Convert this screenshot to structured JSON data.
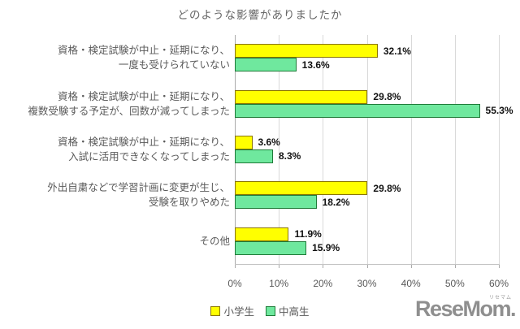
{
  "chart_data": {
    "type": "bar",
    "orientation": "horizontal",
    "title": "どのような影響がありましたか",
    "categories": [
      [
        "資格・検定試験が中止・延期になり、",
        "一度も受けられていない"
      ],
      [
        "資格・検定試験が中止・延期になり、",
        "複数受験する予定が、回数が減ってしまった"
      ],
      [
        "資格・検定試験が中止・延期になり、",
        "入試に活用できなくなってしまった"
      ],
      [
        "外出自粛などで学習計画に変更が生じ、",
        "受験を取りやめた"
      ],
      [
        "その他"
      ]
    ],
    "series": [
      {
        "name": "小学生",
        "fill": "#FFFF00",
        "border": "#8A7500",
        "values": [
          32.1,
          29.8,
          3.6,
          29.8,
          11.9
        ]
      },
      {
        "name": "中高生",
        "fill": "#6FE89E",
        "border": "#1F7A38",
        "values": [
          13.6,
          55.3,
          8.3,
          18.2,
          15.9
        ]
      }
    ],
    "xlim": [
      0,
      60
    ],
    "xticks": [
      0,
      10,
      20,
      30,
      40,
      50,
      60
    ],
    "xtick_labels": [
      "0%",
      "10%",
      "20%",
      "30%",
      "40%",
      "50%",
      "60%"
    ],
    "value_suffix": "%",
    "grid": true,
    "legend_position": "bottom"
  },
  "colors": {
    "gridline": "#d9d9d9",
    "axis": "#ababab",
    "text": "#595959",
    "value_text": "#111111"
  },
  "watermark": {
    "text": "ReseMom.",
    "ruby": "リセマム"
  }
}
